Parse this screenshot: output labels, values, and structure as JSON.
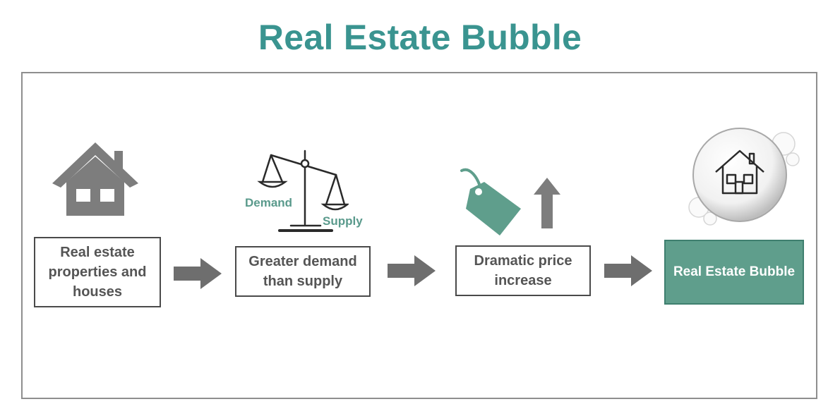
{
  "title": "Real Estate Bubble",
  "steps": [
    {
      "label": "Real estate properties and houses",
      "icon": "house-icon"
    },
    {
      "label": "Greater demand than supply",
      "icon": "balance-scale-icon"
    },
    {
      "label": "Dramatic price increase",
      "icon": "price-tag-icon"
    },
    {
      "label": "Real Estate Bubble",
      "icon": "bubble-house-icon"
    }
  ],
  "scale": {
    "left_label": "Demand",
    "right_label": "Supply"
  },
  "colors": {
    "title": "#3a9490",
    "accent": "#5f9e8c",
    "box_border": "#4a4a4a",
    "arrow": "#6e6e6e",
    "icon_gray": "#7d7d7d"
  }
}
